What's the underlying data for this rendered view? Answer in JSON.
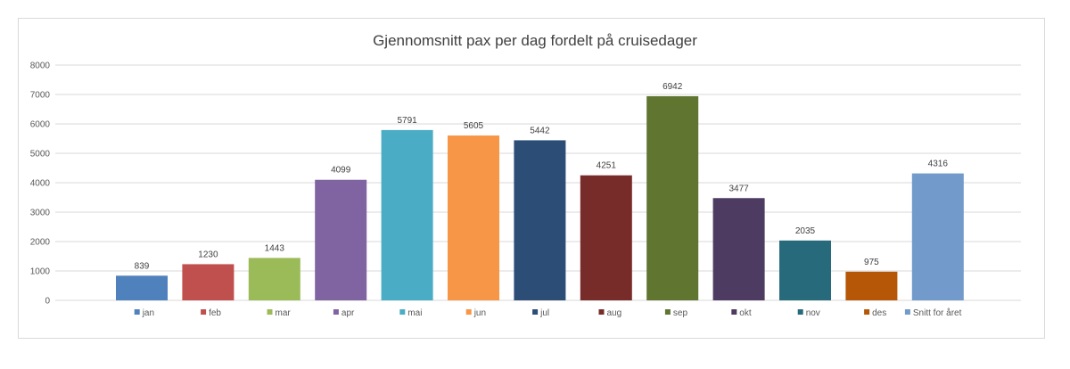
{
  "chart_data": {
    "type": "bar",
    "title": "Gjennomsnitt pax per dag fordelt på cruisedager",
    "xlabel": "",
    "ylabel": "",
    "ylim": [
      0,
      8000
    ],
    "yticks": [
      0,
      1000,
      2000,
      3000,
      4000,
      5000,
      6000,
      7000,
      8000
    ],
    "grid": true,
    "legend_position": "bottom",
    "categories": [
      "jan",
      "feb",
      "mar",
      "apr",
      "mai",
      "jun",
      "jul",
      "aug",
      "sep",
      "okt",
      "nov",
      "des",
      "Snitt for året"
    ],
    "values": [
      839,
      1230,
      1443,
      4099,
      5791,
      5605,
      5442,
      4251,
      6942,
      3477,
      2035,
      975,
      4316
    ],
    "colors": [
      "#4f81bd",
      "#c0504d",
      "#9bbb59",
      "#8064a2",
      "#4bacc6",
      "#f79646",
      "#2c4d75",
      "#772c2a",
      "#5f7530",
      "#4d3b62",
      "#276a7c",
      "#b65708",
      "#729aca"
    ]
  }
}
